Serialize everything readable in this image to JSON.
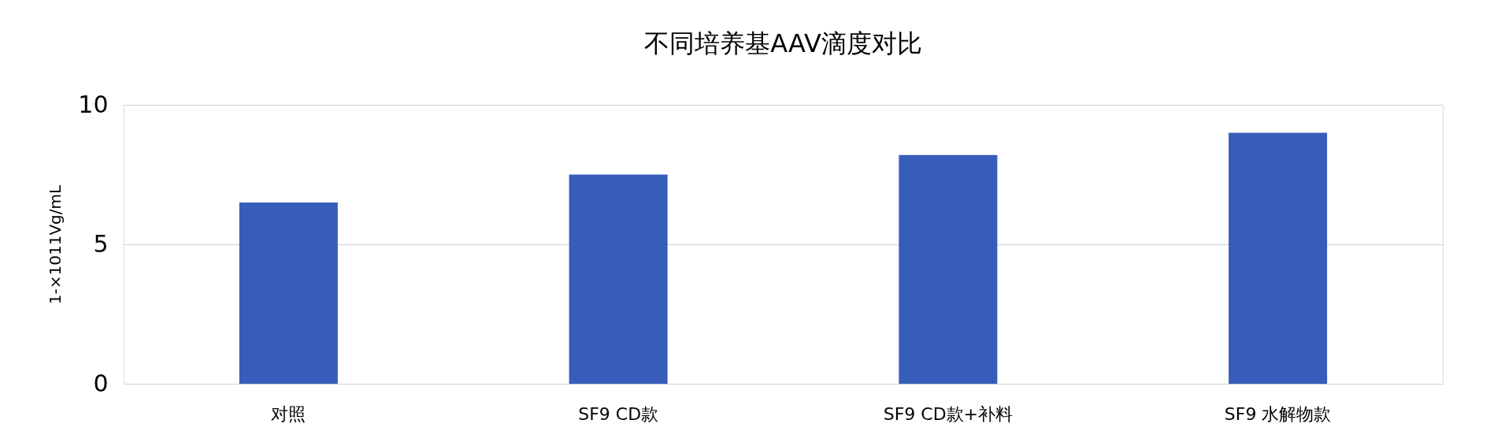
{
  "chart_data": {
    "type": "bar",
    "title": "不同培养基AAV滴度对比",
    "ylabel": "1-×1011Vg/mL",
    "categories": [
      "对照",
      "SF9 CD款",
      "SF9 CD款+补料",
      "SF9 水解物款"
    ],
    "values": [
      6.5,
      7.5,
      8.2,
      9.0
    ],
    "color": "#375dba",
    "ylim": [
      0,
      10
    ],
    "yticks": [
      0,
      5,
      10
    ],
    "grid": "y"
  }
}
